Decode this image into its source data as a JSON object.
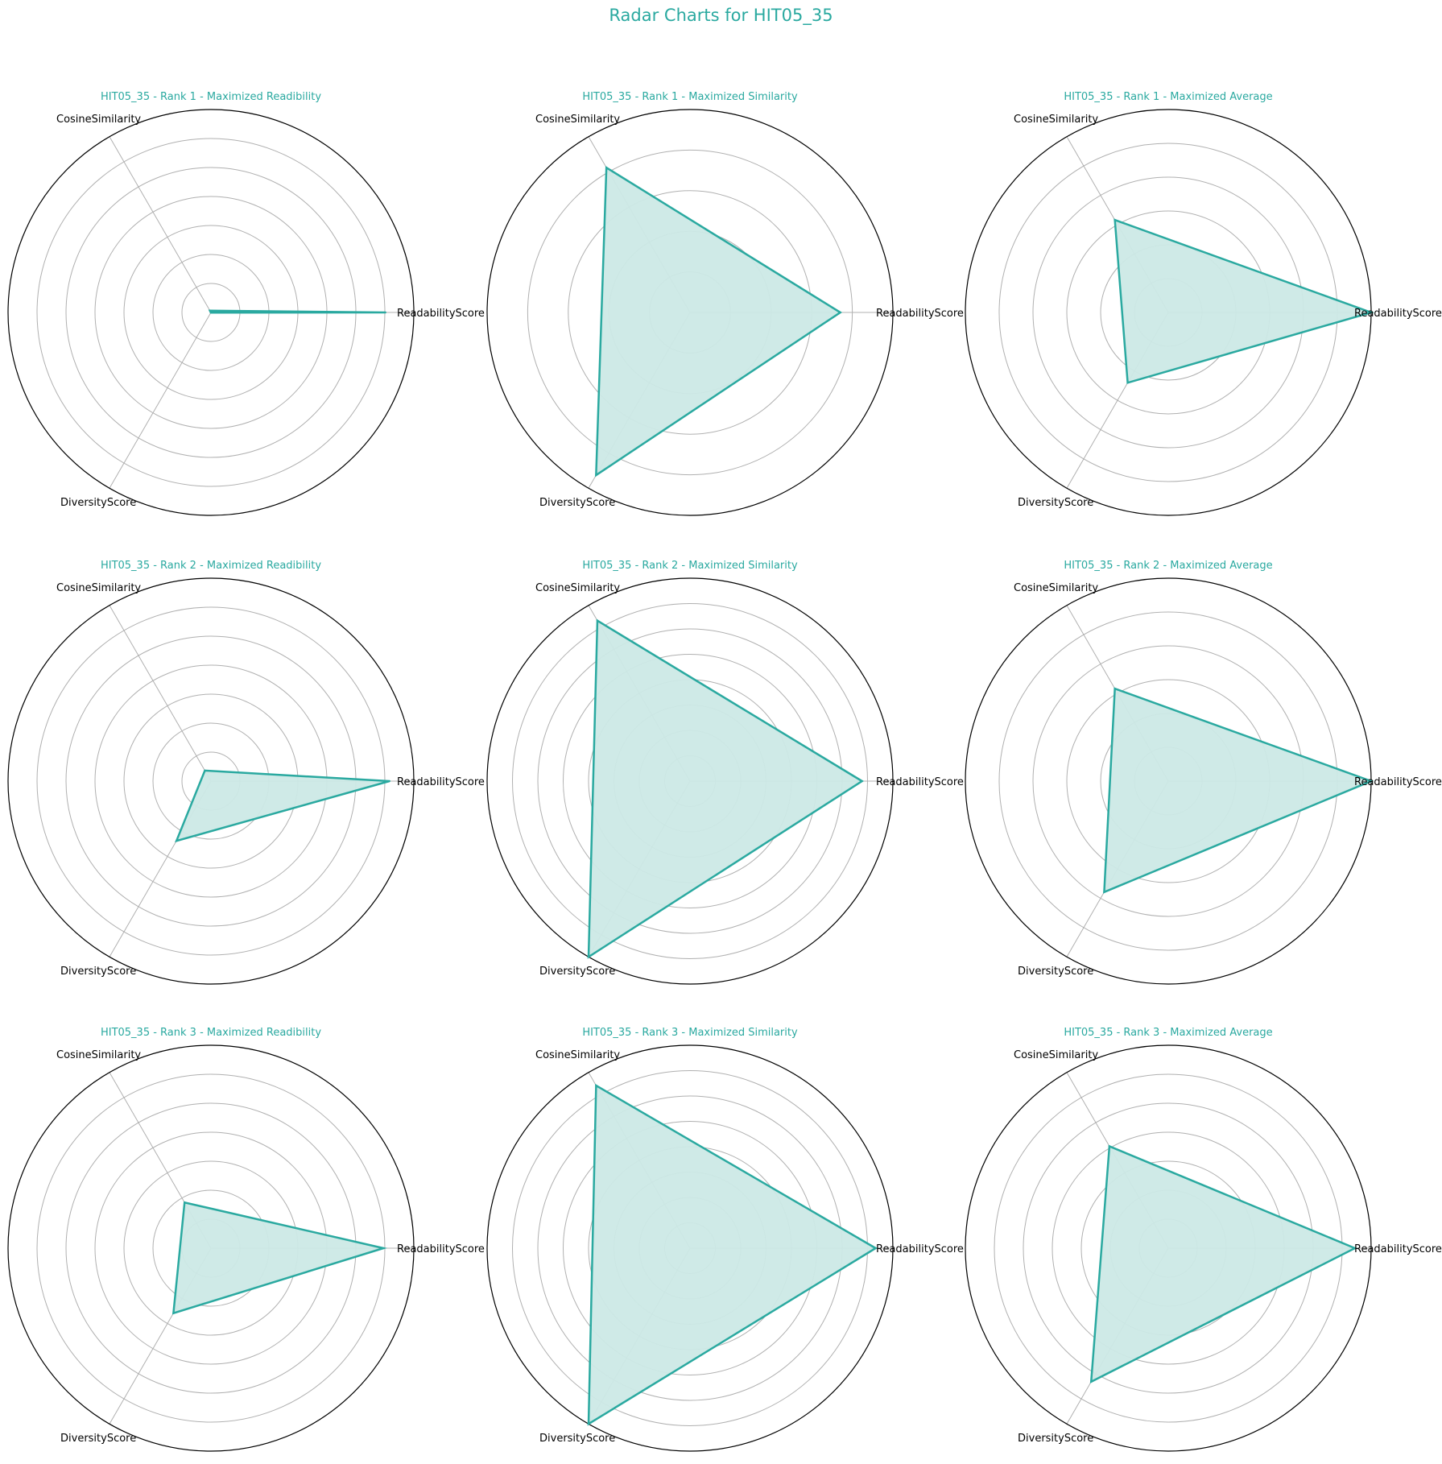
{
  "colors": {
    "accent": "#2aa9a0",
    "fill": "#cce9e6",
    "grid": "#b0b0b0",
    "frame": "#000000"
  },
  "chart_data": {
    "type": "radar",
    "title": "Radar Charts for HIT05_35",
    "axes": [
      "ReadabilityScore",
      "CosineSimilarity",
      "DiversityScore"
    ],
    "charts": [
      {
        "title": "HIT05_35 - Rank 1 - Maximized Readibility",
        "values": [
          0.86,
          0.01,
          0.001
        ],
        "rmax": 1.0,
        "rings": 7
      },
      {
        "title": "HIT05_35 - Rank 1 - Maximized Similarity",
        "values": [
          0.8,
          0.89,
          1.0
        ],
        "rmax": 1.08,
        "rings": 5
      },
      {
        "title": "HIT05_35 - Rank 1 - Maximized Average",
        "values": [
          0.95,
          0.5,
          0.38
        ],
        "rmax": 0.95,
        "rings": 6
      },
      {
        "title": "HIT05_35 - Rank 2 - Maximized Readibility",
        "values": [
          0.88,
          0.06,
          0.34
        ],
        "rmax": 1.0,
        "rings": 7
      },
      {
        "title": "HIT05_35 - Rank 2 - Maximized Similarity",
        "values": [
          0.78,
          0.84,
          0.92
        ],
        "rmax": 0.92,
        "rings": 8
      },
      {
        "title": "HIT05_35 - Rank 2 - Maximized Average",
        "values": [
          0.95,
          0.5,
          0.6
        ],
        "rmax": 0.95,
        "rings": 6
      },
      {
        "title": "HIT05_35 - Rank 3 - Maximized Readibility",
        "values": [
          0.85,
          0.26,
          0.37
        ],
        "rmax": 1.0,
        "rings": 7
      },
      {
        "title": "HIT05_35 - Rank 3 - Maximized Similarity",
        "values": [
          0.86,
          0.87,
          0.94
        ],
        "rmax": 0.94,
        "rings": 8
      },
      {
        "title": "HIT05_35 - Rank 3 - Maximized Average",
        "values": [
          0.92,
          0.58,
          0.76
        ],
        "rmax": 1.0,
        "rings": 7
      }
    ]
  }
}
